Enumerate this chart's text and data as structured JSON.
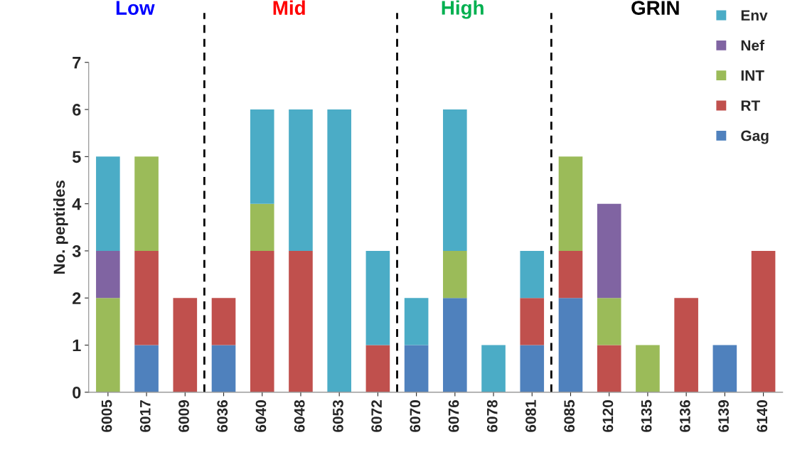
{
  "chart_data": {
    "type": "bar",
    "stacked": true,
    "ylabel": "No. peptides",
    "categories": [
      "6005",
      "6017",
      "6009",
      "6036",
      "6040",
      "6048",
      "6053",
      "6072",
      "6070",
      "6076",
      "6078",
      "6081",
      "6085",
      "6120",
      "6135",
      "6136",
      "6139",
      "6140"
    ],
    "series": [
      {
        "name": "Gag",
        "color": "#4f81bd",
        "values": [
          0,
          1,
          0,
          1,
          0,
          0,
          0,
          0,
          1,
          2,
          0,
          1,
          2,
          0,
          0,
          0,
          1,
          0
        ]
      },
      {
        "name": "RT",
        "color": "#c0504d",
        "values": [
          0,
          2,
          2,
          1,
          3,
          3,
          0,
          1,
          0,
          0,
          0,
          1,
          1,
          1,
          0,
          2,
          0,
          3
        ]
      },
      {
        "name": "INT",
        "color": "#9bbb59",
        "values": [
          2,
          2,
          0,
          0,
          1,
          0,
          0,
          0,
          0,
          1,
          0,
          0,
          2,
          1,
          1,
          0,
          0,
          0
        ]
      },
      {
        "name": "Nef",
        "color": "#8064a2",
        "values": [
          1,
          0,
          0,
          0,
          0,
          0,
          0,
          0,
          0,
          0,
          0,
          0,
          0,
          2,
          0,
          0,
          0,
          0
        ]
      },
      {
        "name": "Env",
        "color": "#4bacc6",
        "values": [
          2,
          0,
          0,
          0,
          2,
          3,
          6,
          2,
          1,
          3,
          1,
          1,
          0,
          0,
          0,
          0,
          0,
          0
        ]
      }
    ],
    "ylim": [
      0,
      7
    ],
    "yticks": [
      0,
      1,
      2,
      3,
      4,
      5,
      6,
      7
    ],
    "annotations": [
      "Low",
      "Mid",
      "High",
      "GRIN"
    ],
    "legend": "top right",
    "marker": "square",
    "grid": false
  }
}
